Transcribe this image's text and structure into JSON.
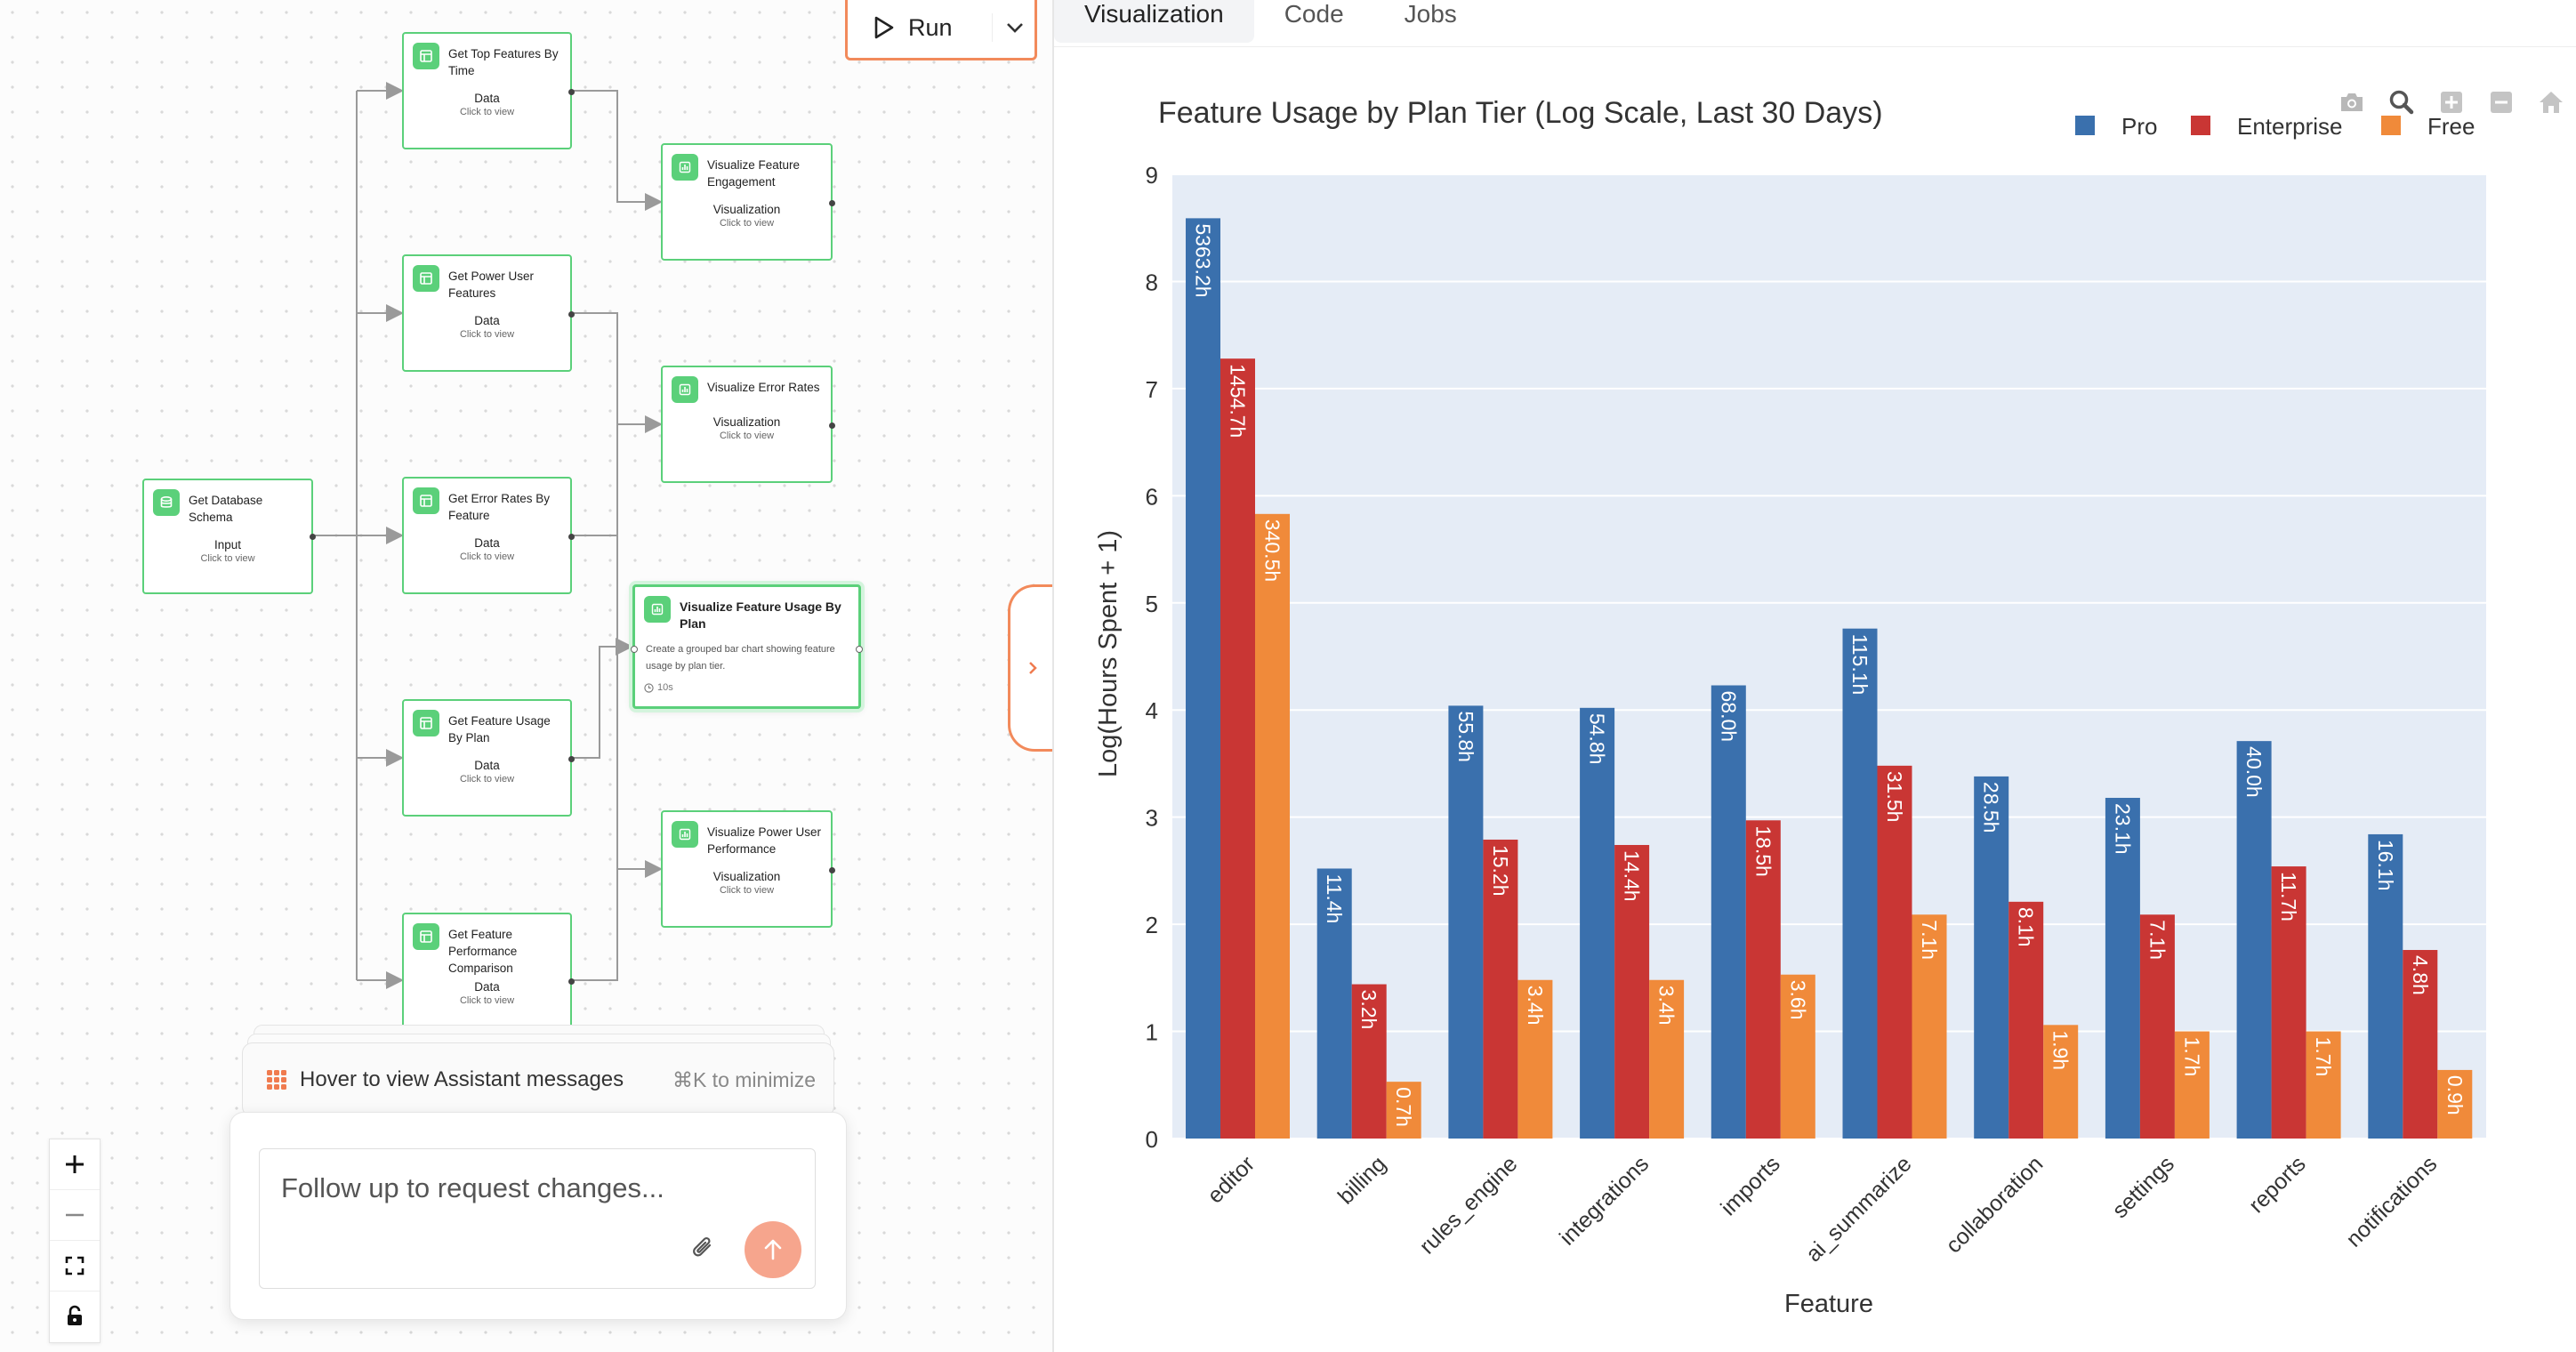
{
  "run_label": "Run",
  "tabs": [
    {
      "label": "Visualization",
      "active": true
    },
    {
      "label": "Code",
      "active": false
    },
    {
      "label": "Jobs",
      "active": false
    }
  ],
  "nodes": {
    "schema": {
      "title": "Get Database Schema",
      "type": "Input",
      "hint": "Click to view"
    },
    "top_features": {
      "title": "Get Top Features By Time",
      "type": "Data",
      "hint": "Click to view"
    },
    "power_user": {
      "title": "Get Power User Features",
      "type": "Data",
      "hint": "Click to view"
    },
    "error_rates": {
      "title": "Get Error Rates By Feature",
      "type": "Data",
      "hint": "Click to view"
    },
    "usage_by_plan": {
      "title": "Get Feature Usage By Plan",
      "type": "Data",
      "hint": "Click to view"
    },
    "perf_comparison": {
      "title": "Get Feature Performance Comparison",
      "type": "Data",
      "hint": "Click to view"
    },
    "viz_engagement": {
      "title": "Visualize Feature Engagement",
      "type": "Visualization",
      "hint": "Click to view"
    },
    "viz_error": {
      "title": "Visualize Error Rates",
      "type": "Visualization",
      "hint": "Click to view"
    },
    "viz_usage": {
      "title": "Visualize Feature Usage By Plan",
      "description": "Create a grouped bar chart showing feature usage by plan tier.",
      "time": "10s"
    },
    "viz_power": {
      "title": "Visualize Power User Performance",
      "type": "Visualization",
      "hint": "Click to view"
    }
  },
  "assistant": {
    "hover_text": "Hover to view Assistant messages",
    "shortcut": "⌘K to minimize",
    "input_placeholder": "Follow up to request changes..."
  },
  "colors": {
    "pro": "#3a70ad",
    "enterprise": "#c93634",
    "free": "#f08a3a",
    "node_border": "#5bd07a",
    "accent": "#f28a5b"
  },
  "chart_data": {
    "type": "bar",
    "title": "Feature Usage by Plan Tier (Log Scale, Last 30 Days)",
    "xlabel": "Feature",
    "ylabel": "Log(Hours Spent + 1)",
    "ylim": [
      0,
      9
    ],
    "yticks": [
      0,
      1,
      2,
      3,
      4,
      5,
      6,
      7,
      8,
      9
    ],
    "legend_position": "top-right",
    "categories": [
      "editor",
      "billing",
      "rules_engine",
      "integrations",
      "imports",
      "ai_summarize",
      "collaboration",
      "settings",
      "reports",
      "notifications"
    ],
    "series": [
      {
        "name": "Pro",
        "values": [
          8.59,
          2.52,
          4.04,
          4.02,
          4.23,
          4.76,
          3.38,
          3.18,
          3.71,
          2.84
        ],
        "labels": [
          "5363.2h",
          "11.4h",
          "55.8h",
          "54.8h",
          "68.0h",
          "115.1h",
          "28.5h",
          "23.1h",
          "40.0h",
          "16.1h"
        ]
      },
      {
        "name": "Enterprise",
        "values": [
          7.28,
          1.44,
          2.79,
          2.74,
          2.97,
          3.48,
          2.21,
          2.09,
          2.54,
          1.76
        ],
        "labels": [
          "1454.7h",
          "3.2h",
          "15.2h",
          "14.4h",
          "18.5h",
          "31.5h",
          "8.1h",
          "7.1h",
          "11.7h",
          "4.8h"
        ]
      },
      {
        "name": "Free",
        "values": [
          5.83,
          0.53,
          1.48,
          1.48,
          1.53,
          2.09,
          1.06,
          1.0,
          1.0,
          0.64
        ],
        "labels": [
          "340.5h",
          "0.7h",
          "3.4h",
          "3.4h",
          "3.6h",
          "7.1h",
          "1.9h",
          "1.7h",
          "1.7h",
          "0.9h"
        ]
      }
    ]
  }
}
